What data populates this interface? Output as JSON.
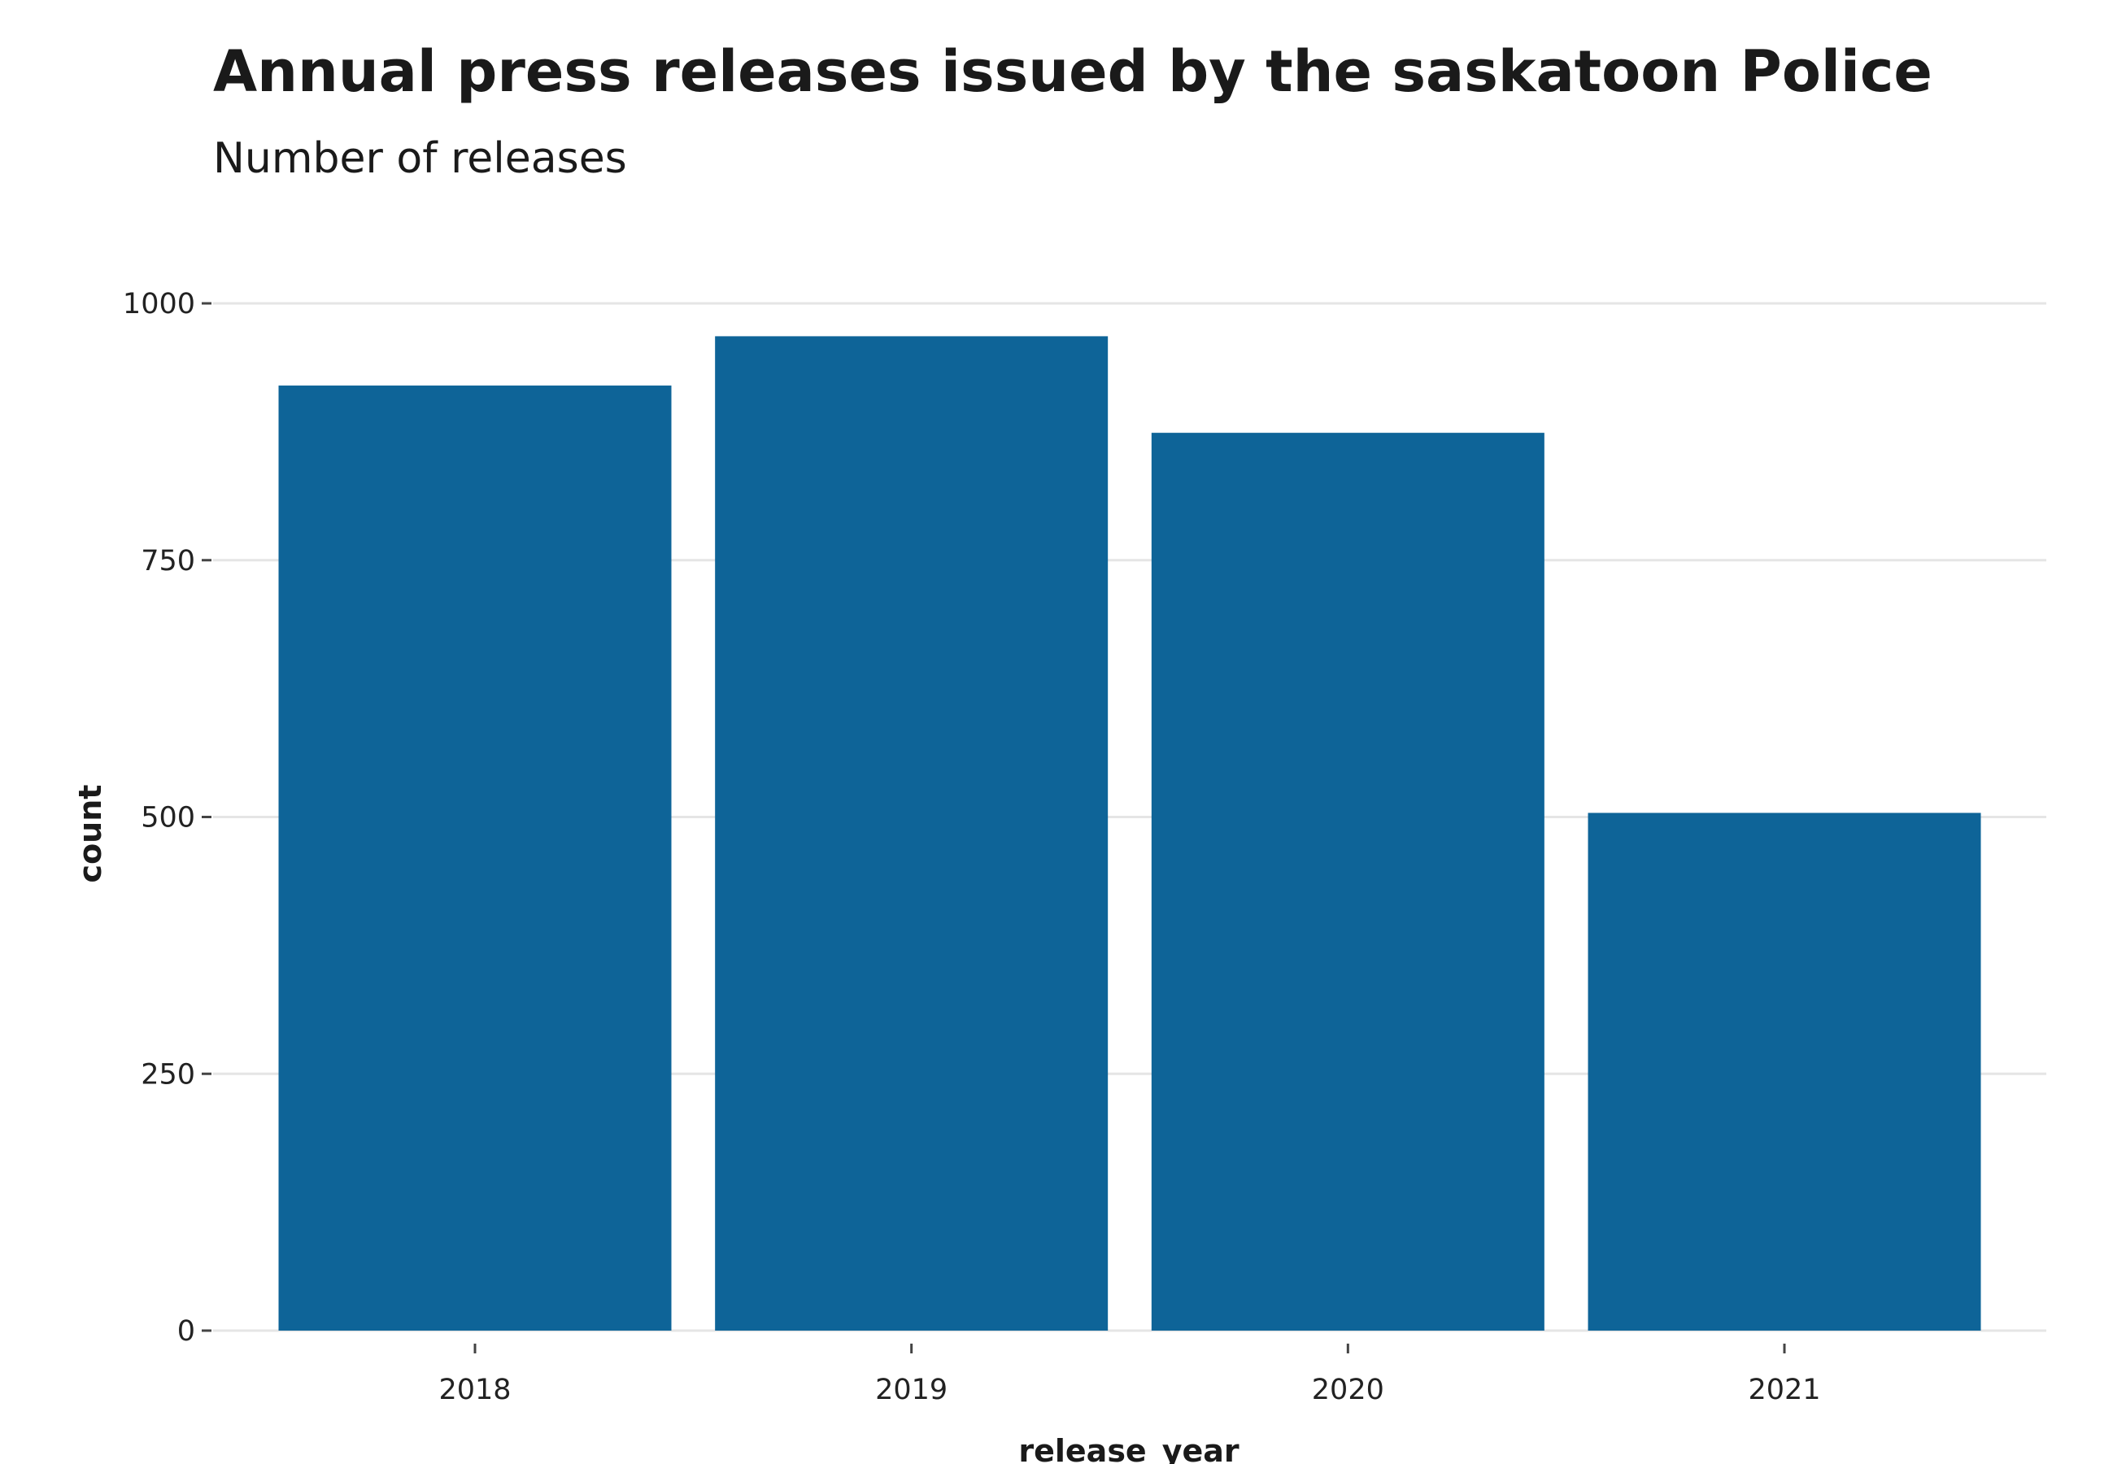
{
  "chart_data": {
    "type": "bar",
    "title": "Annual press releases issued by the saskatoon Police",
    "subtitle": "Number of releases",
    "xlabel": "release_year",
    "ylabel": "count",
    "categories": [
      "2018",
      "2019",
      "2020",
      "2021"
    ],
    "values": [
      920,
      968,
      874,
      504
    ],
    "ylim": [
      0,
      1000
    ],
    "yticks": [
      0,
      250,
      500,
      750,
      1000
    ],
    "ytick_labels": [
      "0",
      "250",
      "500",
      "750",
      "1000"
    ],
    "grid": "horizontal",
    "legend": "none",
    "bar_color": "#0e6498"
  }
}
